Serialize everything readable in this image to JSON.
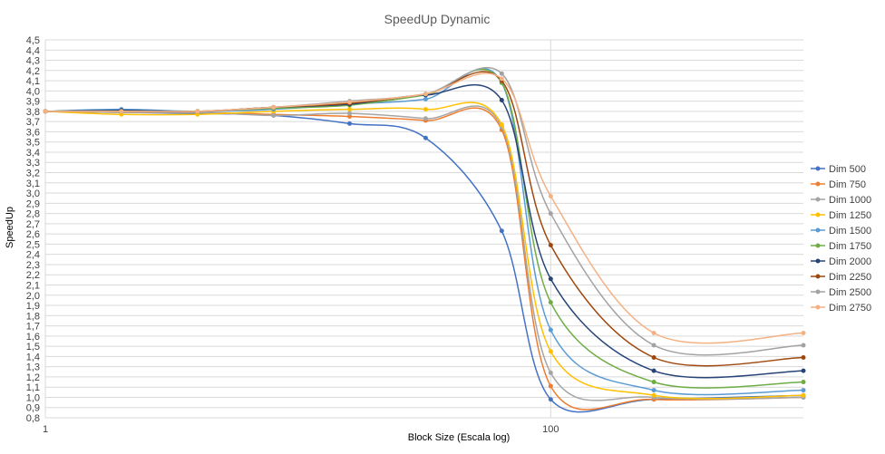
{
  "chart_data": {
    "type": "line",
    "title": "SpeedUp Dynamic",
    "xlabel": "Block Size (Escala log)",
    "ylabel": "SpeedUp",
    "x_scale": "log",
    "x_ticks": [
      {
        "value": 1,
        "label": "1"
      },
      {
        "value": 100,
        "label": "100"
      }
    ],
    "xlim": [
      1,
      1000
    ],
    "ylim": [
      0.8,
      4.5
    ],
    "y_step": 0.1,
    "grid": true,
    "legend_position": "right",
    "x": [
      1,
      2,
      4,
      8,
      16,
      32,
      64,
      100,
      256,
      1000
    ],
    "series": [
      {
        "name": "Dim 500",
        "color": "#4472C4",
        "values": [
          3.8,
          3.79,
          3.78,
          3.76,
          3.68,
          3.54,
          2.63,
          0.98,
          0.98,
          1.02
        ]
      },
      {
        "name": "Dim 750",
        "color": "#ED7D31",
        "values": [
          3.8,
          3.79,
          3.79,
          3.77,
          3.75,
          3.71,
          3.62,
          1.11,
          0.98,
          1.0
        ]
      },
      {
        "name": "Dim 1000",
        "color": "#A5A5A5",
        "values": [
          3.8,
          3.79,
          3.79,
          3.76,
          3.78,
          3.73,
          3.65,
          1.24,
          1.0,
          1.0
        ]
      },
      {
        "name": "Dim 1250",
        "color": "#FFC000",
        "values": [
          3.8,
          3.77,
          3.77,
          3.8,
          3.82,
          3.82,
          3.67,
          1.45,
          1.02,
          1.02
        ]
      },
      {
        "name": "Dim 1500",
        "color": "#5B9BD5",
        "values": [
          3.8,
          3.82,
          3.8,
          3.82,
          3.87,
          3.92,
          4.08,
          1.66,
          1.07,
          1.07
        ]
      },
      {
        "name": "Dim 1750",
        "color": "#70AD47",
        "values": [
          3.8,
          3.81,
          3.8,
          3.83,
          3.86,
          3.96,
          4.08,
          1.93,
          1.15,
          1.15
        ]
      },
      {
        "name": "Dim 2000",
        "color": "#264478",
        "values": [
          3.8,
          3.81,
          3.8,
          3.84,
          3.87,
          3.96,
          3.91,
          2.16,
          1.26,
          1.26
        ]
      },
      {
        "name": "Dim 2250",
        "color": "#9E480E",
        "values": [
          3.8,
          3.8,
          3.8,
          3.84,
          3.88,
          3.97,
          4.1,
          2.49,
          1.39,
          1.39
        ]
      },
      {
        "name": "Dim 2500",
        "color": "#A3A3A3",
        "values": [
          3.8,
          3.8,
          3.8,
          3.84,
          3.9,
          3.97,
          4.17,
          2.8,
          1.51,
          1.51
        ]
      },
      {
        "name": "Dim 2750",
        "color": "#F4B183",
        "values": [
          3.8,
          3.8,
          3.8,
          3.84,
          3.89,
          3.97,
          4.12,
          2.97,
          1.63,
          1.63
        ]
      }
    ]
  }
}
